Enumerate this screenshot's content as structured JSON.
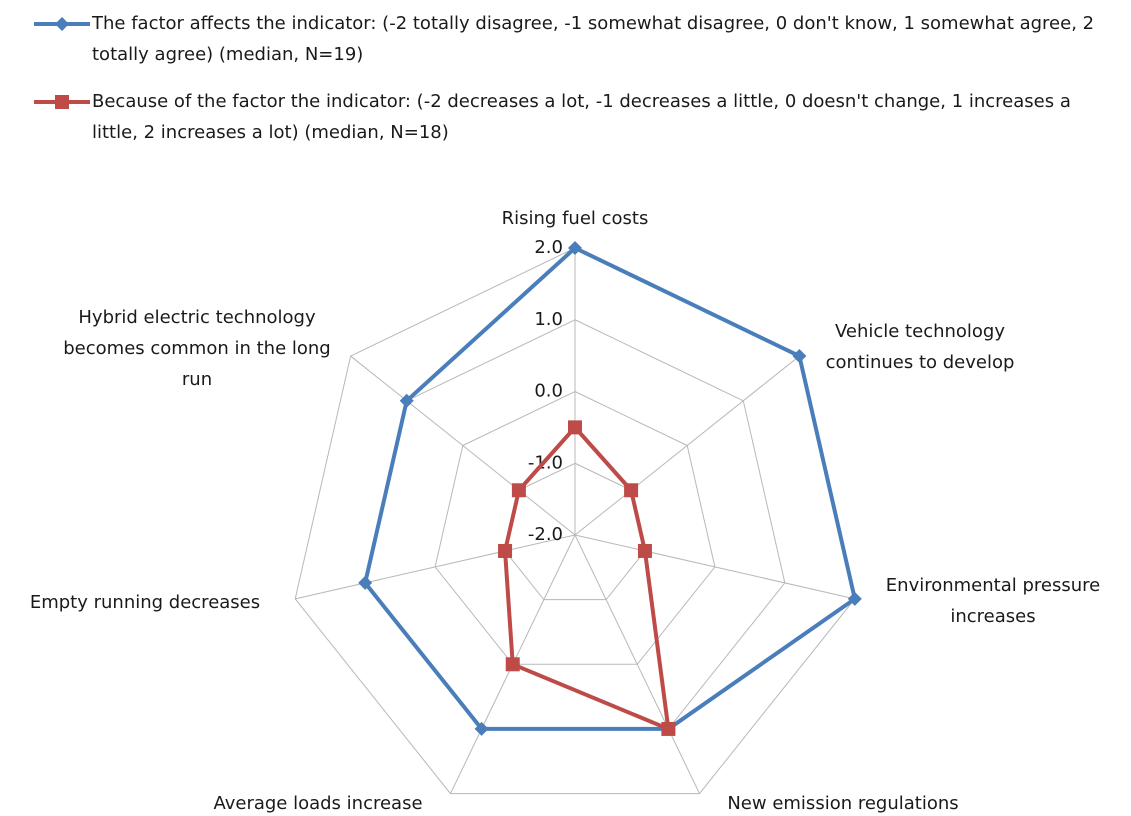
{
  "chart_data": {
    "type": "radar",
    "categories": [
      "Rising fuel costs",
      "Vehicle technology continues to develop",
      "Environmental pressure increases",
      "New emission regulations",
      "Average loads increase",
      "Empty running decreases",
      "Hybrid electric technology becomes common in the long run"
    ],
    "series": [
      {
        "name": "The factor affects the indicator: (-2 totally disagree, -1 somewhat disagree, 0 don't know, 1 somewhat agree, 2 totally agree) (median, N=19)",
        "color": "#4a7ebb",
        "marker": "diamond",
        "values": [
          2,
          2,
          2,
          1,
          1,
          1,
          1
        ]
      },
      {
        "name": "Because of the factor the indicator: (-2 decreases a lot, -1 decreases a little, 0 doesn't change, 1 increases a little, 2 increases a lot) (median, N=18)",
        "color": "#be4b48",
        "marker": "square",
        "values": [
          -0.5,
          -1,
          -1,
          1,
          0,
          -1,
          -1
        ]
      }
    ],
    "ylim": [
      -2,
      2
    ],
    "yticks": [
      {
        "value": -2,
        "label": "-2.0"
      },
      {
        "value": -1,
        "label": "-1.0"
      },
      {
        "value": 0,
        "label": "0.0"
      },
      {
        "value": 1,
        "label": "1.0"
      },
      {
        "value": 2,
        "label": "2.0"
      }
    ],
    "grid": true,
    "legend": "top"
  }
}
